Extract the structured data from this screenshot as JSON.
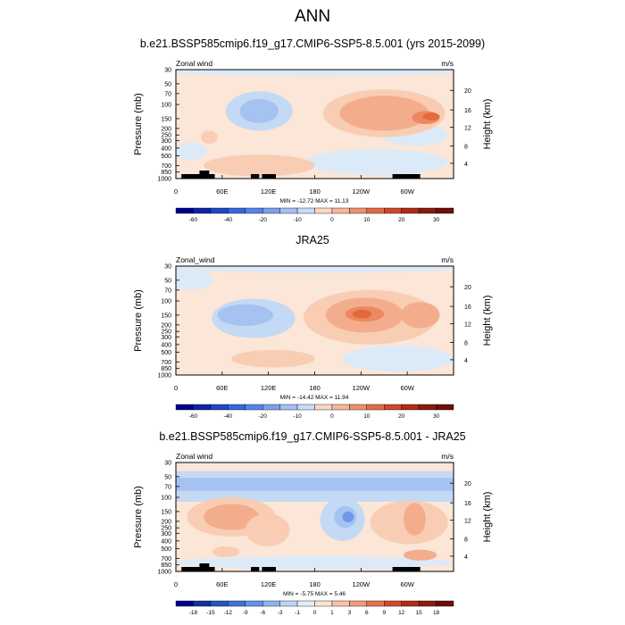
{
  "main_title": "ANN",
  "chart_data": [
    {
      "type": "heatmap",
      "title": "b.e21.BSSP585cmip6.f19_g17.CMIP6-SSP5-8.5.001 (yrs 2015-2099)",
      "left_label": "Zonal wind",
      "right_label": "m/s",
      "ylabel": "Pressure (mb)",
      "y2label": "Height (km)",
      "x_ticks": [
        "0",
        "60E",
        "120E",
        "180",
        "120W",
        "60W"
      ],
      "y_ticks": [
        "30",
        "50",
        "70",
        "100",
        "150",
        "200",
        "250",
        "300",
        "400",
        "500",
        "700",
        "850",
        "1000"
      ],
      "y2_ticks": [
        "20",
        "16",
        "12",
        "8",
        "4"
      ],
      "stats": "MIN = -12.72  MAX = 11.13",
      "colorbar_labels": [
        "-60",
        "-40",
        "-20",
        "-10",
        "0",
        "10",
        "20",
        "30"
      ],
      "levels": [
        -60,
        -50,
        -40,
        -30,
        -20,
        -15,
        -10,
        -5,
        0,
        5,
        10,
        15,
        20,
        25,
        30
      ]
    },
    {
      "type": "heatmap",
      "title": "JRA25",
      "left_label": "Zonal_wind",
      "right_label": "m/s",
      "ylabel": "Pressure (mb)",
      "y2label": "Height (km)",
      "x_ticks": [
        "0",
        "60E",
        "120E",
        "180",
        "120W",
        "60W"
      ],
      "y_ticks": [
        "30",
        "50",
        "70",
        "100",
        "150",
        "200",
        "250",
        "300",
        "400",
        "500",
        "700",
        "850",
        "1000"
      ],
      "y2_ticks": [
        "20",
        "16",
        "12",
        "8",
        "4"
      ],
      "stats": "MIN = -14.42  MAX = 11.94",
      "colorbar_labels": [
        "-60",
        "-40",
        "-20",
        "-10",
        "0",
        "10",
        "20",
        "30"
      ],
      "levels": [
        -60,
        -50,
        -40,
        -30,
        -20,
        -15,
        -10,
        -5,
        0,
        5,
        10,
        15,
        20,
        25,
        30
      ]
    },
    {
      "type": "heatmap",
      "title": "b.e21.BSSP585cmip6.f19_g17.CMIP6-SSP5-8.5.001 - JRA25",
      "left_label": "Zonal wind",
      "right_label": "m/s",
      "ylabel": "Pressure (mb)",
      "y2label": "Height (km)",
      "x_ticks": [
        "0",
        "60E",
        "120E",
        "180",
        "120W",
        "60W"
      ],
      "y_ticks": [
        "30",
        "50",
        "70",
        "100",
        "150",
        "200",
        "250",
        "300",
        "400",
        "500",
        "700",
        "850",
        "1000"
      ],
      "y2_ticks": [
        "20",
        "16",
        "12",
        "8",
        "4"
      ],
      "stats": "MIN = -5.75  MAX = 5.46",
      "colorbar_labels": [
        "-18",
        "-15",
        "-12",
        "-9",
        "-6",
        "-3",
        "-1",
        "0",
        "1",
        "3",
        "6",
        "9",
        "12",
        "15",
        "18"
      ],
      "levels": [
        -18,
        -15,
        -12,
        -9,
        -6,
        -3,
        -1,
        0,
        1,
        3,
        6,
        9,
        12,
        15,
        18
      ]
    }
  ],
  "colors": {
    "bar_diverging": [
      "#00008b",
      "#0d25a6",
      "#1f48c4",
      "#3468dc",
      "#5484ea",
      "#7aa0ef",
      "#a3bff3",
      "#c9dbf6",
      "#f9d7c6",
      "#f6b59c",
      "#ef8f70",
      "#e46a48",
      "#d0472b",
      "#b02a1a",
      "#8b1a10",
      "#6b0f0a"
    ],
    "bar_diff": [
      "#00008b",
      "#14309e",
      "#2456c4",
      "#3a73dc",
      "#5f93ea",
      "#8cb3f1",
      "#bcd3f6",
      "#e3ecfa",
      "#fbe3d6",
      "#f7c2a8",
      "#f19a7a",
      "#e6714d",
      "#d24a2c",
      "#b12b1a",
      "#8e1b10",
      "#6b0f0a"
    ]
  }
}
